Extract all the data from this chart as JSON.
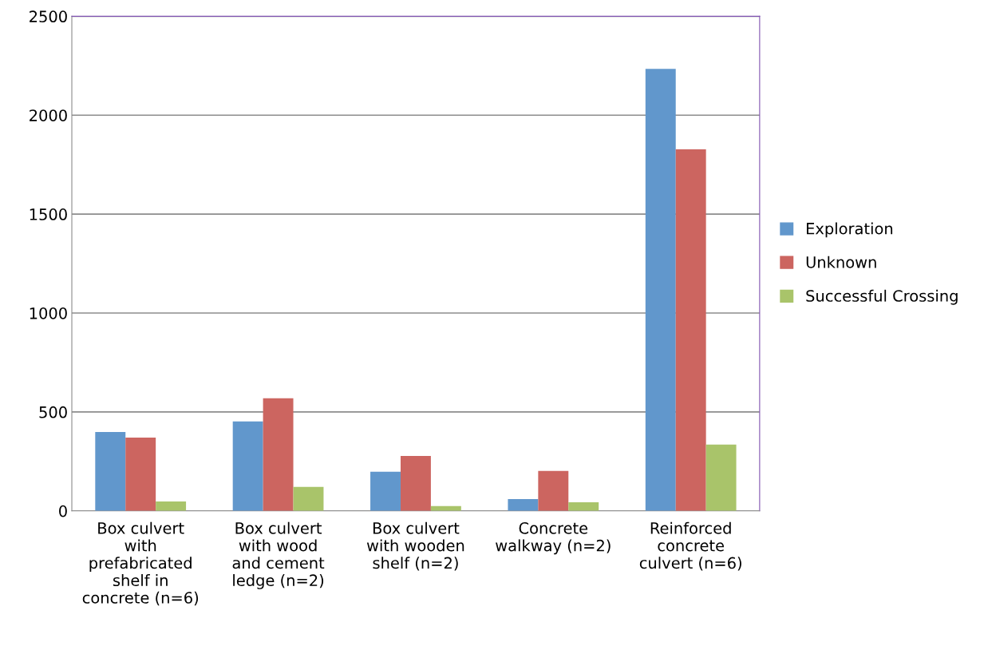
{
  "chart_data": {
    "type": "bar",
    "categories": [
      "Box culvert\nwith\nprefabricated\nshelf in\nconcrete (n=6)",
      "Box culvert\nwith wood\nand cement\nledge (n=2)",
      "Box culvert\nwith wooden\nshelf (n=2)",
      "Concrete\nwalkway (n=2)",
      "Reinforced\nconcrete\nculvert (n=6)"
    ],
    "series": [
      {
        "name": "Exploration",
        "color": "#6197cc",
        "values": [
          399,
          452,
          198,
          60,
          2234
        ]
      },
      {
        "name": "Unknown",
        "color": "#cc6560",
        "values": [
          371,
          569,
          278,
          202,
          1827
        ]
      },
      {
        "name": "Successful Crossing",
        "color": "#a9c46a",
        "values": [
          48,
          121,
          24,
          44,
          335
        ]
      }
    ],
    "ylim": [
      0,
      2500
    ],
    "yticks": [
      0,
      500,
      1000,
      1500,
      2000,
      2500
    ],
    "grid": "y",
    "legend": "right"
  }
}
